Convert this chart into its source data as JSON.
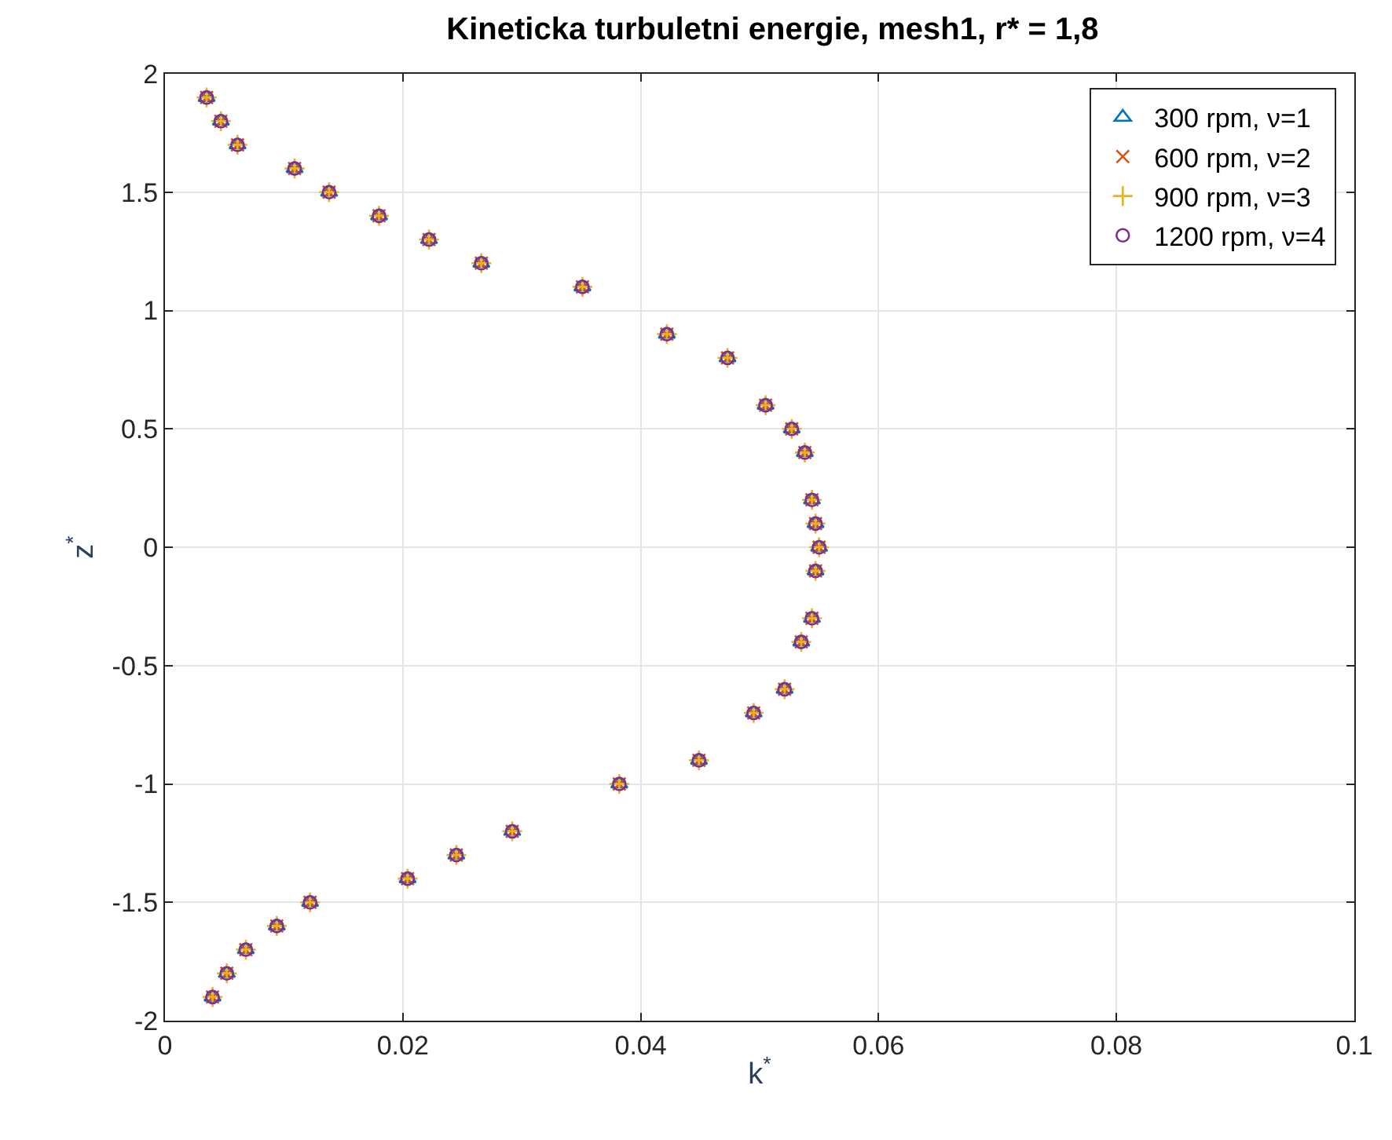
{
  "chart_data": {
    "type": "scatter",
    "title": "Kineticka turbuletni energie, mesh1, r* = 1,8",
    "xlabel": "k$^{*}$",
    "ylabel": "z$^{*}$",
    "series": [
      {
        "name": "300 rpm, ν=1",
        "color": "#0072bd",
        "marker": "triangle",
        "x": [
          0.0035,
          0.0047,
          0.0061,
          0.0109,
          0.0138,
          0.018,
          0.0222,
          0.0266,
          0.0351,
          0.0422,
          0.0473,
          0.0505,
          0.0527,
          0.0538,
          0.0544,
          0.0547,
          0.055,
          0.0547,
          0.0544,
          0.0535,
          0.0521,
          0.0495,
          0.0449,
          0.0382,
          0.0292,
          0.0245,
          0.0204,
          0.0122,
          0.0094,
          0.0068,
          0.0052,
          0.004
        ],
        "values": [
          1.9,
          1.8,
          1.7,
          1.6,
          1.5,
          1.4,
          1.3,
          1.2,
          1.1,
          0.9,
          0.8,
          0.6,
          0.5,
          0.4,
          0.2,
          0.1,
          0.0,
          -0.1,
          -0.3,
          -0.4,
          -0.6,
          -0.7,
          -0.9,
          -1.0,
          -1.2,
          -1.3,
          -1.4,
          -1.5,
          -1.6,
          -1.7,
          -1.8,
          -1.9
        ]
      },
      {
        "name": "600 rpm, ν=2",
        "color": "#d95319",
        "marker": "cross",
        "x": [
          0.0035,
          0.0047,
          0.0061,
          0.0109,
          0.0138,
          0.018,
          0.0222,
          0.0266,
          0.0351,
          0.0422,
          0.0473,
          0.0505,
          0.0527,
          0.0538,
          0.0544,
          0.0547,
          0.055,
          0.0547,
          0.0544,
          0.0535,
          0.0521,
          0.0495,
          0.0449,
          0.0382,
          0.0292,
          0.0245,
          0.0204,
          0.0122,
          0.0094,
          0.0068,
          0.0052,
          0.004
        ],
        "values": [
          1.9,
          1.8,
          1.7,
          1.6,
          1.5,
          1.4,
          1.3,
          1.2,
          1.1,
          0.9,
          0.8,
          0.6,
          0.5,
          0.4,
          0.2,
          0.1,
          0.0,
          -0.1,
          -0.3,
          -0.4,
          -0.6,
          -0.7,
          -0.9,
          -1.0,
          -1.2,
          -1.3,
          -1.4,
          -1.5,
          -1.6,
          -1.7,
          -1.8,
          -1.9
        ]
      },
      {
        "name": "900 rpm, ν=3",
        "color": "#edb120",
        "marker": "plus",
        "x": [
          0.0035,
          0.0047,
          0.0061,
          0.0109,
          0.0138,
          0.018,
          0.0222,
          0.0266,
          0.0351,
          0.0422,
          0.0473,
          0.0505,
          0.0527,
          0.0538,
          0.0544,
          0.0547,
          0.055,
          0.0547,
          0.0544,
          0.0535,
          0.0521,
          0.0495,
          0.0449,
          0.0382,
          0.0292,
          0.0245,
          0.0204,
          0.0122,
          0.0094,
          0.0068,
          0.0052,
          0.004
        ],
        "values": [
          1.9,
          1.8,
          1.7,
          1.6,
          1.5,
          1.4,
          1.3,
          1.2,
          1.1,
          0.9,
          0.8,
          0.6,
          0.5,
          0.4,
          0.2,
          0.1,
          0.0,
          -0.1,
          -0.3,
          -0.4,
          -0.6,
          -0.7,
          -0.9,
          -1.0,
          -1.2,
          -1.3,
          -1.4,
          -1.5,
          -1.6,
          -1.7,
          -1.8,
          -1.9
        ]
      },
      {
        "name": "1200 rpm, ν=4",
        "color": "#7e2f8e",
        "marker": "circle",
        "x": [
          0.0035,
          0.0047,
          0.0061,
          0.0109,
          0.0138,
          0.018,
          0.0222,
          0.0266,
          0.0351,
          0.0422,
          0.0473,
          0.0505,
          0.0527,
          0.0538,
          0.0544,
          0.0547,
          0.055,
          0.0547,
          0.0544,
          0.0535,
          0.0521,
          0.0495,
          0.0449,
          0.0382,
          0.0292,
          0.0245,
          0.0204,
          0.0122,
          0.0094,
          0.0068,
          0.0052,
          0.004
        ],
        "values": [
          1.9,
          1.8,
          1.7,
          1.6,
          1.5,
          1.4,
          1.3,
          1.2,
          1.1,
          0.9,
          0.8,
          0.6,
          0.5,
          0.4,
          0.2,
          0.1,
          0.0,
          -0.1,
          -0.3,
          -0.4,
          -0.6,
          -0.7,
          -0.9,
          -1.0,
          -1.2,
          -1.3,
          -1.4,
          -1.5,
          -1.6,
          -1.7,
          -1.8,
          -1.9
        ]
      }
    ],
    "xlim": [
      0,
      0.1
    ],
    "xticks": [
      0,
      0.02,
      0.04,
      0.06,
      0.08,
      0.1
    ],
    "ylim": [
      -2,
      2
    ],
    "yticks": [
      -2,
      -1.5,
      -1,
      -0.5,
      0,
      0.5,
      1,
      1.5,
      2
    ],
    "grid": true,
    "legend": "top right"
  }
}
